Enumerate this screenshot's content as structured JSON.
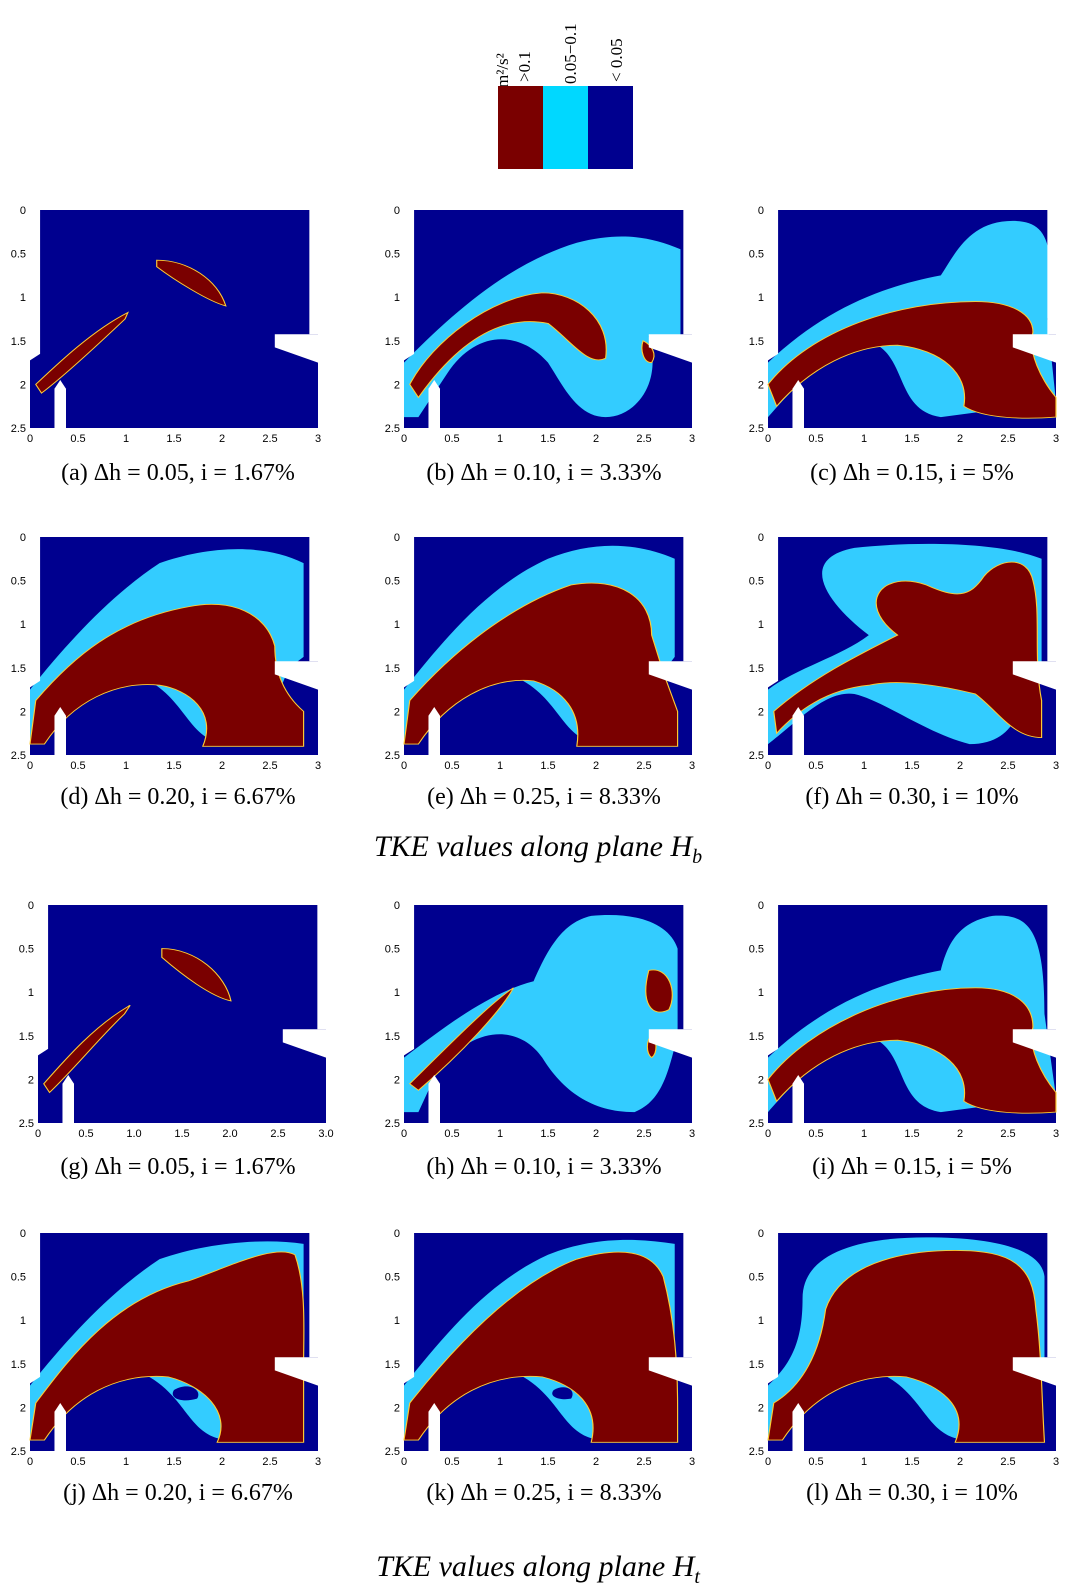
{
  "legend": {
    "unit": "m²/s²",
    "labels": [
      ">0.1",
      "0.05−0.1",
      "< 0.05"
    ],
    "colors": [
      "#7a0000",
      "#00d8ff",
      "#00008f"
    ]
  },
  "colors": {
    "high": "#7a0000",
    "mid": "#33ccff",
    "low": "#00008f"
  },
  "captions": [
    "(a) Δh = 0.05, i = 1.67%",
    "(b) Δh = 0.10, i = 3.33%",
    "(c) Δh = 0.15, i = 5%",
    "(d) Δh = 0.20, i = 6.67%",
    "(e) Δh = 0.25, i = 8.33%",
    "(f) Δh = 0.30, i = 10%",
    "(g) Δh = 0.05, i = 1.67%",
    "(h) Δh = 0.10, i = 3.33%",
    "(i) Δh = 0.15, i = 5%",
    "(j) Δh = 0.20, i = 6.67%",
    "(k) Δh = 0.25, i = 8.33%",
    "(l) Δh = 0.30, i = 10%"
  ],
  "section_titles": [
    "TKE values along plane H_b",
    "TKE values along plane H_t"
  ],
  "axes": {
    "x_ticks": [
      "0",
      "0.5",
      "1",
      "1.5",
      "2",
      "2.5",
      "3"
    ],
    "x_ticks_g": [
      "0",
      "0.5",
      "1.0",
      "1.5",
      "2.0",
      "2.5",
      "3.0"
    ],
    "y_ticks": [
      "0",
      "0.5",
      "1",
      "1.5",
      "2",
      "2.5"
    ]
  }
}
